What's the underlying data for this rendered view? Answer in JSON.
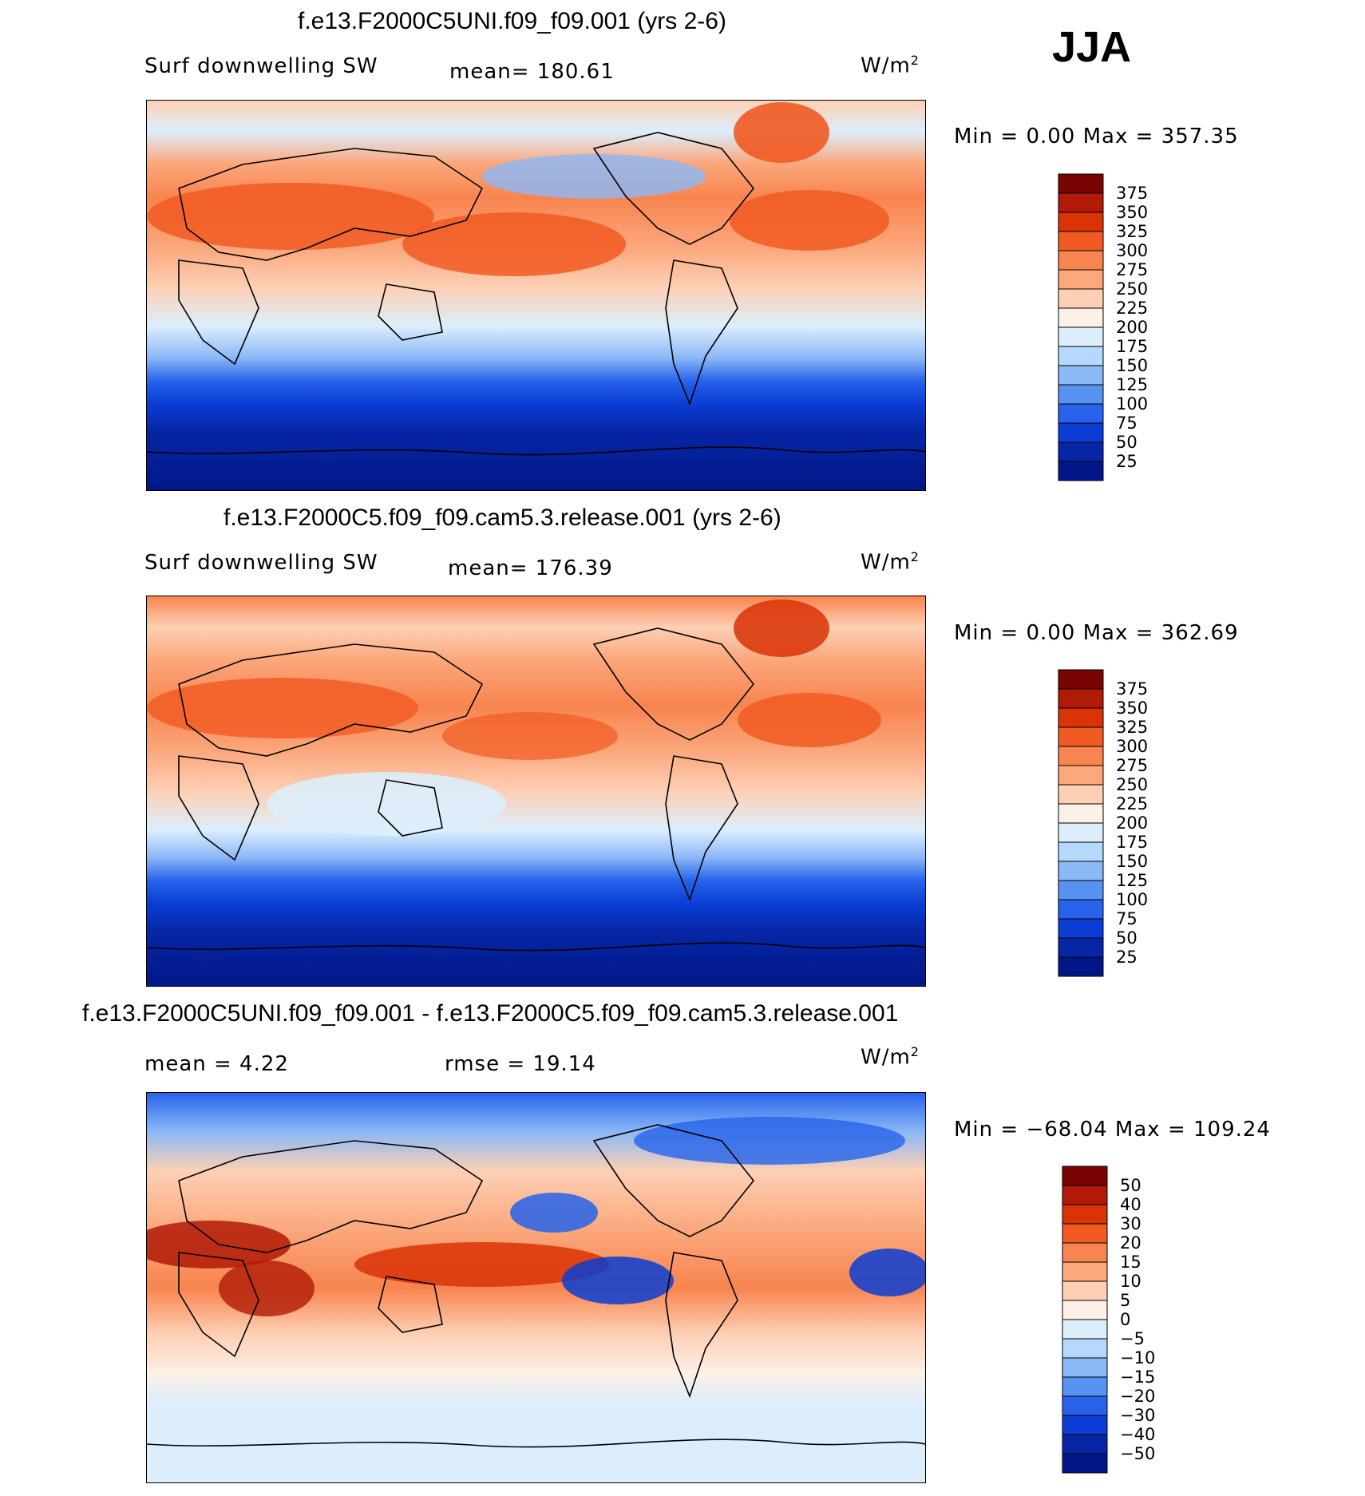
{
  "season": "JJA",
  "panels": [
    {
      "title": "f.e13.F2000C5UNI.f09_f09.001 (yrs 2-6)",
      "left_label": "Surf downwelling SW",
      "center_label": "mean= 180.61",
      "right_label": "W/m",
      "right_label_sup": "2",
      "minmax": "Min =     0.00 Max  =  357.35",
      "kind": "field"
    },
    {
      "title": "f.e13.F2000C5.f09_f09.cam5.3.release.001 (yrs 2-6)",
      "left_label": "Surf downwelling SW",
      "center_label": "mean= 176.39",
      "right_label": "W/m",
      "right_label_sup": "2",
      "minmax": "Min =     0.00 Max  =  362.69",
      "kind": "field"
    },
    {
      "title": "f.e13.F2000C5UNI.f09_f09.001 - f.e13.F2000C5.f09_f09.cam5.3.release.001",
      "left_label": "mean  =     4.22",
      "center_label": "rmse  =    19.14",
      "right_label": "W/m",
      "right_label_sup": "2",
      "minmax": "Min  =  −68.04  Max  =  109.24",
      "kind": "difference"
    }
  ],
  "chart_data": [
    {
      "type": "heatmap",
      "title": "f.e13.F2000C5UNI.f09_f09.001 (yrs 2-6)",
      "variable": "Surf downwelling SW",
      "units": "W/m2",
      "mean": 180.61,
      "min": 0.0,
      "max": 357.35,
      "colorbar_levels": [
        375,
        350,
        325,
        300,
        275,
        250,
        225,
        200,
        175,
        150,
        125,
        100,
        75,
        50,
        25
      ],
      "colorbar_colors": [
        "#7a0403",
        "#b01a06",
        "#d93306",
        "#f15a22",
        "#f8844f",
        "#fba87d",
        "#fdd0b5",
        "#fdf0e6",
        "#dceefc",
        "#b6d8fb",
        "#8bb8f7",
        "#5792f0",
        "#2663ea",
        "#0b3dd4",
        "#0626a6",
        "#021787"
      ]
    },
    {
      "type": "heatmap",
      "title": "f.e13.F2000C5.f09_f09.cam5.3.release.001 (yrs 2-6)",
      "variable": "Surf downwelling SW",
      "units": "W/m2",
      "mean": 176.39,
      "min": 0.0,
      "max": 362.69,
      "colorbar_levels": [
        375,
        350,
        325,
        300,
        275,
        250,
        225,
        200,
        175,
        150,
        125,
        100,
        75,
        50,
        25
      ],
      "colorbar_colors": [
        "#7a0403",
        "#b01a06",
        "#d93306",
        "#f15a22",
        "#f8844f",
        "#fba87d",
        "#fdd0b5",
        "#fdf0e6",
        "#dceefc",
        "#b6d8fb",
        "#8bb8f7",
        "#5792f0",
        "#2663ea",
        "#0b3dd4",
        "#0626a6",
        "#021787"
      ]
    },
    {
      "type": "heatmap",
      "title": "f.e13.F2000C5UNI.f09_f09.001 - f.e13.F2000C5.f09_f09.cam5.3.release.001",
      "units": "W/m2",
      "mean": 4.22,
      "rmse": 19.14,
      "min": -68.04,
      "max": 109.24,
      "colorbar_levels": [
        "50",
        "40",
        "30",
        "20",
        "15",
        "10",
        "5",
        "0",
        "−5",
        "−10",
        "−15",
        "−20",
        "−30",
        "−40",
        "−50"
      ],
      "colorbar_colors": [
        "#7a0403",
        "#b01a06",
        "#d93306",
        "#f15a22",
        "#f8844f",
        "#fba87d",
        "#fdd0b5",
        "#fdf0e6",
        "#dceefc",
        "#b6d8fb",
        "#8bb8f7",
        "#5792f0",
        "#2663ea",
        "#0b3dd4",
        "#0626a6",
        "#021787"
      ]
    }
  ]
}
